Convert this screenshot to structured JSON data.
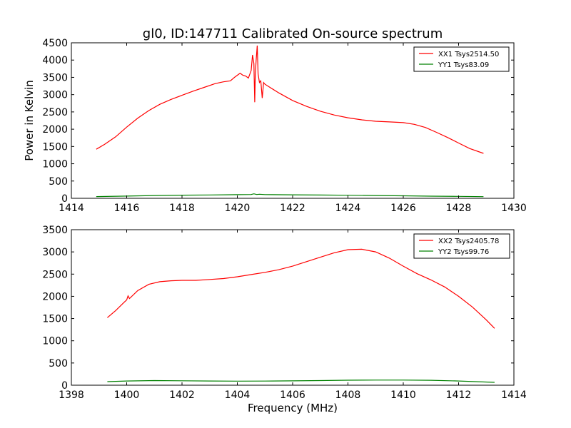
{
  "figure": {
    "title": "gl0, ID:147711 Calibrated On-source spectrum",
    "xlabel": "Frequency (MHz)",
    "ylabel": "Power in Kelvin"
  },
  "chart_data": [
    {
      "type": "line",
      "title": "gl0, ID:147711 Calibrated On-source spectrum",
      "xlabel": "",
      "ylabel": "Power in Kelvin",
      "xlim": [
        1414,
        1430
      ],
      "ylim": [
        0,
        4500
      ],
      "xticks": [
        "1414",
        "1416",
        "1418",
        "1420",
        "1422",
        "1424",
        "1426",
        "1428",
        "1430"
      ],
      "yticks": [
        "0",
        "500",
        "1000",
        "1500",
        "2000",
        "2500",
        "3000",
        "3500",
        "4000",
        "4500"
      ],
      "legend_position": "top-right",
      "series": [
        {
          "name": "XX1 Tsys2514.50",
          "color": "#ff0000",
          "x": [
            1414.9,
            1415.2,
            1415.6,
            1416.0,
            1416.4,
            1416.8,
            1417.2,
            1417.6,
            1418.0,
            1418.4,
            1418.8,
            1419.2,
            1419.5,
            1419.75,
            1419.9,
            1420.0,
            1420.1,
            1420.2,
            1420.3,
            1420.4,
            1420.5,
            1420.55,
            1420.6,
            1420.63,
            1420.65,
            1420.68,
            1420.72,
            1420.75,
            1420.8,
            1420.85,
            1420.9,
            1420.95,
            1421.0,
            1421.2,
            1421.5,
            1422.0,
            1422.5,
            1423.0,
            1423.5,
            1424.0,
            1424.5,
            1425.0,
            1425.5,
            1426.0,
            1426.4,
            1426.8,
            1427.2,
            1427.6,
            1428.0,
            1428.4,
            1428.9
          ],
          "y": [
            1420,
            1560,
            1780,
            2060,
            2320,
            2540,
            2720,
            2860,
            2980,
            3100,
            3210,
            3320,
            3370,
            3400,
            3500,
            3560,
            3620,
            3560,
            3540,
            3480,
            3700,
            4150,
            3900,
            2780,
            3600,
            4000,
            4420,
            3600,
            3350,
            3400,
            2900,
            3350,
            3300,
            3200,
            3050,
            2830,
            2660,
            2520,
            2410,
            2330,
            2270,
            2230,
            2210,
            2190,
            2140,
            2050,
            1910,
            1760,
            1600,
            1440,
            1300
          ]
        },
        {
          "name": "YY1 Tsys83.09",
          "color": "#008000",
          "x": [
            1414.9,
            1416.0,
            1417.0,
            1418.0,
            1419.0,
            1420.0,
            1420.5,
            1420.6,
            1420.7,
            1420.8,
            1421.0,
            1422.0,
            1423.0,
            1424.0,
            1425.0,
            1426.0,
            1427.0,
            1428.0,
            1428.9
          ],
          "y": [
            50,
            65,
            80,
            90,
            98,
            105,
            110,
            130,
            110,
            118,
            108,
            102,
            95,
            88,
            80,
            72,
            62,
            55,
            48
          ]
        }
      ]
    },
    {
      "type": "line",
      "title": "",
      "xlabel": "Frequency (MHz)",
      "ylabel": "",
      "xlim": [
        1398,
        1414
      ],
      "ylim": [
        0,
        3500
      ],
      "xticks": [
        "1398",
        "1400",
        "1402",
        "1404",
        "1406",
        "1408",
        "1410",
        "1412",
        "1414"
      ],
      "yticks": [
        "0",
        "500",
        "1000",
        "1500",
        "2000",
        "2500",
        "3000",
        "3500"
      ],
      "legend_position": "top-right",
      "series": [
        {
          "name": "XX2 Tsys2405.78",
          "color": "#ff0000",
          "x": [
            1399.3,
            1399.6,
            1399.9,
            1400.0,
            1400.05,
            1400.1,
            1400.4,
            1400.8,
            1401.2,
            1401.6,
            1402.0,
            1402.5,
            1403.0,
            1403.5,
            1404.0,
            1404.5,
            1405.0,
            1405.5,
            1406.0,
            1406.5,
            1407.0,
            1407.5,
            1408.0,
            1408.5,
            1409.0,
            1409.5,
            1410.0,
            1410.5,
            1411.0,
            1411.5,
            1412.0,
            1412.5,
            1413.0,
            1413.3
          ],
          "y": [
            1520,
            1680,
            1860,
            1920,
            2010,
            1950,
            2130,
            2270,
            2330,
            2350,
            2360,
            2360,
            2380,
            2400,
            2440,
            2490,
            2540,
            2600,
            2680,
            2780,
            2880,
            2980,
            3050,
            3060,
            3000,
            2860,
            2680,
            2510,
            2370,
            2210,
            2000,
            1760,
            1470,
            1280
          ]
        },
        {
          "name": "YY2 Tsys99.76",
          "color": "#008000",
          "x": [
            1399.3,
            1400.0,
            1401.0,
            1402.0,
            1403.0,
            1404.0,
            1405.0,
            1406.0,
            1407.0,
            1408.0,
            1409.0,
            1410.0,
            1411.0,
            1412.0,
            1413.3
          ],
          "y": [
            80,
            95,
            105,
            100,
            95,
            92,
            93,
            98,
            105,
            112,
            116,
            115,
            110,
            95,
            65
          ]
        }
      ]
    }
  ]
}
